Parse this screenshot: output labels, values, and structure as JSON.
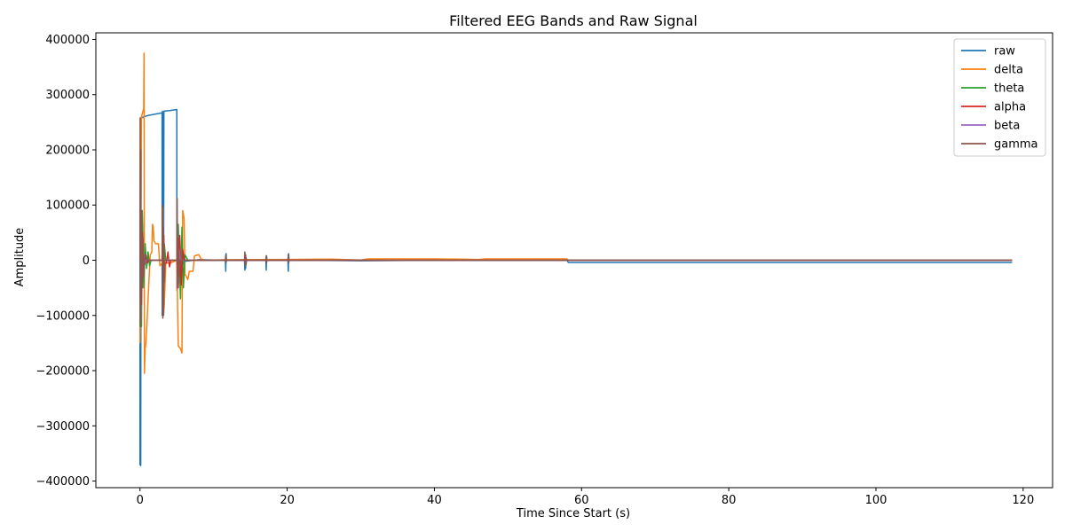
{
  "chart_data": {
    "type": "line",
    "title": "Filtered EEG Bands and Raw Signal",
    "xlabel": "Time Since Start (s)",
    "ylabel": "Amplitude",
    "xlim": [
      -6,
      124
    ],
    "ylim": [
      -412000,
      412000
    ],
    "x_ticks": [
      0,
      20,
      40,
      60,
      80,
      100,
      120
    ],
    "y_ticks": [
      -400000,
      -300000,
      -200000,
      -100000,
      0,
      100000,
      200000,
      300000,
      400000
    ],
    "grid": false,
    "legend_position": "top-right",
    "series": [
      {
        "name": "raw",
        "color": "#1f77b4",
        "points": [
          [
            0,
            0
          ],
          [
            0,
            -370000
          ],
          [
            0.1,
            -372000
          ],
          [
            0.15,
            255000
          ],
          [
            0.2,
            258000
          ],
          [
            1,
            262000
          ],
          [
            3,
            267000
          ],
          [
            3.02,
            -100000
          ],
          [
            3.05,
            270000
          ],
          [
            3.1,
            -100000
          ],
          [
            3.15,
            268000
          ],
          [
            3.2,
            -60000
          ],
          [
            3.25,
            270000
          ],
          [
            4,
            271000
          ],
          [
            5,
            273000
          ],
          [
            5.02,
            -55000
          ],
          [
            5.1,
            -50000
          ],
          [
            5.5,
            -20000
          ],
          [
            6,
            -2000
          ],
          [
            8,
            1000
          ],
          [
            11.6,
            0
          ],
          [
            11.65,
            -20000
          ],
          [
            11.7,
            12000
          ],
          [
            11.75,
            0
          ],
          [
            14.2,
            0
          ],
          [
            14.25,
            -18000
          ],
          [
            14.3,
            10000
          ],
          [
            14.35,
            -15000
          ],
          [
            14.4,
            0
          ],
          [
            17.1,
            0
          ],
          [
            17.15,
            -18000
          ],
          [
            17.2,
            8000
          ],
          [
            17.25,
            0
          ],
          [
            20.1,
            0
          ],
          [
            20.15,
            -20000
          ],
          [
            20.2,
            12000
          ],
          [
            20.25,
            0
          ],
          [
            30,
            -1000
          ],
          [
            40,
            0
          ],
          [
            50,
            -500
          ],
          [
            58,
            0
          ],
          [
            58.2,
            -4000
          ],
          [
            70,
            -4000
          ],
          [
            80,
            -4000
          ],
          [
            100,
            -4000
          ],
          [
            118.5,
            -4000
          ]
        ]
      },
      {
        "name": "delta",
        "color": "#ff7f0e",
        "points": [
          [
            0,
            -150000
          ],
          [
            0.2,
            260000
          ],
          [
            0.4,
            270000
          ],
          [
            0.5,
            275000
          ],
          [
            0.55,
            375000
          ],
          [
            0.6,
            -205000
          ],
          [
            0.7,
            -160000
          ],
          [
            0.8,
            -150000
          ],
          [
            1,
            -100000
          ],
          [
            1.2,
            -40000
          ],
          [
            1.4,
            10000
          ],
          [
            1.6,
            15000
          ],
          [
            1.7,
            65000
          ],
          [
            1.8,
            60000
          ],
          [
            1.9,
            35000
          ],
          [
            2.1,
            30000
          ],
          [
            2.5,
            30000
          ],
          [
            2.7,
            -10000
          ],
          [
            3,
            -5000
          ],
          [
            3.1,
            95000
          ],
          [
            3.2,
            -100000
          ],
          [
            3.3,
            -80000
          ],
          [
            3.5,
            -5000
          ],
          [
            4,
            -5000
          ],
          [
            4.5,
            -3000
          ],
          [
            5,
            0
          ],
          [
            5.2,
            -155000
          ],
          [
            5.5,
            -160000
          ],
          [
            5.7,
            -168000
          ],
          [
            5.8,
            90000
          ],
          [
            6,
            75000
          ],
          [
            6.1,
            -25000
          ],
          [
            6.5,
            -35000
          ],
          [
            6.7,
            -20000
          ],
          [
            7.2,
            -20000
          ],
          [
            7.4,
            8000
          ],
          [
            8,
            10000
          ],
          [
            8.3,
            2000
          ],
          [
            9,
            0
          ],
          [
            12,
            1000
          ],
          [
            20,
            1500
          ],
          [
            26,
            2000
          ],
          [
            30,
            500
          ],
          [
            31,
            2500
          ],
          [
            40,
            2500
          ],
          [
            46,
            1500
          ],
          [
            47,
            2500
          ],
          [
            58,
            2500
          ],
          [
            58.2,
            0
          ],
          [
            118.5,
            0
          ]
        ]
      },
      {
        "name": "theta",
        "color": "#2ca02c",
        "points": [
          [
            0,
            0
          ],
          [
            0.1,
            120000
          ],
          [
            0.2,
            -120000
          ],
          [
            0.3,
            90000
          ],
          [
            0.4,
            40000
          ],
          [
            0.5,
            -50000
          ],
          [
            0.7,
            30000
          ],
          [
            0.9,
            -15000
          ],
          [
            1.1,
            15000
          ],
          [
            1.3,
            -10000
          ],
          [
            1.5,
            0
          ],
          [
            3,
            0
          ],
          [
            3.1,
            40000
          ],
          [
            3.2,
            -90000
          ],
          [
            3.3,
            30000
          ],
          [
            3.5,
            0
          ],
          [
            5.0,
            0
          ],
          [
            5.2,
            65000
          ],
          [
            5.5,
            -70000
          ],
          [
            5.7,
            60000
          ],
          [
            5.9,
            -50000
          ],
          [
            6.1,
            10000
          ],
          [
            6.5,
            0
          ],
          [
            14.3,
            0
          ],
          [
            14.35,
            10000
          ],
          [
            14.4,
            -8000
          ],
          [
            14.5,
            0
          ],
          [
            118.5,
            0
          ]
        ]
      },
      {
        "name": "alpha",
        "color": "#d62728",
        "points": [
          [
            0,
            0
          ],
          [
            0.1,
            80000
          ],
          [
            0.2,
            -80000
          ],
          [
            0.3,
            50000
          ],
          [
            0.5,
            -20000
          ],
          [
            0.8,
            10000
          ],
          [
            1.0,
            -5000
          ],
          [
            1.2,
            0
          ],
          [
            3,
            0
          ],
          [
            3.1,
            30000
          ],
          [
            3.2,
            -60000
          ],
          [
            3.3,
            -5000
          ],
          [
            3.6,
            -5000
          ],
          [
            3.8,
            15000
          ],
          [
            4,
            -12000
          ],
          [
            4.2,
            0
          ],
          [
            5.0,
            0
          ],
          [
            5.2,
            -50000
          ],
          [
            5.4,
            45000
          ],
          [
            5.6,
            -45000
          ],
          [
            5.8,
            20000
          ],
          [
            6.0,
            0
          ],
          [
            14.3,
            0
          ],
          [
            14.35,
            8000
          ],
          [
            14.4,
            -6000
          ],
          [
            14.5,
            0
          ],
          [
            118.5,
            0
          ]
        ]
      },
      {
        "name": "beta",
        "color": "#9467bd",
        "points": [
          [
            0,
            0
          ],
          [
            0.05,
            100000
          ],
          [
            0.1,
            -110000
          ],
          [
            0.2,
            60000
          ],
          [
            0.3,
            -40000
          ],
          [
            0.4,
            20000
          ],
          [
            0.6,
            -10000
          ],
          [
            0.8,
            0
          ],
          [
            3,
            0
          ],
          [
            3.1,
            20000
          ],
          [
            3.2,
            -30000
          ],
          [
            3.3,
            0
          ],
          [
            5.0,
            0
          ],
          [
            5.1,
            60000
          ],
          [
            5.2,
            -40000
          ],
          [
            5.3,
            20000
          ],
          [
            5.5,
            0
          ],
          [
            14.3,
            0
          ],
          [
            14.35,
            5000
          ],
          [
            14.4,
            -4000
          ],
          [
            14.5,
            0
          ],
          [
            118.5,
            0
          ]
        ]
      },
      {
        "name": "gamma",
        "color": "#8c564b",
        "points": [
          [
            0,
            0
          ],
          [
            0.02,
            258000
          ],
          [
            0.05,
            -120000
          ],
          [
            0.1,
            200000
          ],
          [
            0.15,
            -80000
          ],
          [
            0.2,
            90000
          ],
          [
            0.3,
            -50000
          ],
          [
            0.4,
            40000
          ],
          [
            0.5,
            -30000
          ],
          [
            0.7,
            10000
          ],
          [
            1.0,
            0
          ],
          [
            3,
            0
          ],
          [
            3.05,
            100000
          ],
          [
            3.1,
            -105000
          ],
          [
            3.15,
            60000
          ],
          [
            3.2,
            -100000
          ],
          [
            3.25,
            45000
          ],
          [
            3.3,
            -40000
          ],
          [
            3.4,
            0
          ],
          [
            5.0,
            0
          ],
          [
            5.05,
            112000
          ],
          [
            5.1,
            -50000
          ],
          [
            5.2,
            40000
          ],
          [
            5.3,
            -30000
          ],
          [
            5.5,
            0
          ],
          [
            11.6,
            0
          ],
          [
            11.65,
            10000
          ],
          [
            11.7,
            -4000
          ],
          [
            11.75,
            0
          ],
          [
            14.2,
            0
          ],
          [
            14.25,
            15000
          ],
          [
            14.3,
            -10000
          ],
          [
            14.4,
            5000
          ],
          [
            14.5,
            0
          ],
          [
            17.1,
            0
          ],
          [
            17.15,
            8000
          ],
          [
            17.2,
            -5000
          ],
          [
            17.25,
            0
          ],
          [
            20.1,
            0
          ],
          [
            20.15,
            10000
          ],
          [
            20.2,
            -5000
          ],
          [
            20.25,
            0
          ],
          [
            118.5,
            0
          ]
        ]
      }
    ]
  }
}
